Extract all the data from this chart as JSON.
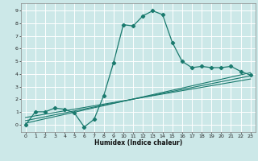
{
  "title": "",
  "xlabel": "Humidex (Indice chaleur)",
  "ylabel": "",
  "bg_color": "#cce8e8",
  "grid_color": "#ffffff",
  "line_color": "#1a7a6e",
  "xlim": [
    -0.5,
    23.5
  ],
  "ylim": [
    -0.6,
    9.6
  ],
  "xticks": [
    0,
    1,
    2,
    3,
    4,
    5,
    6,
    7,
    8,
    9,
    10,
    11,
    12,
    13,
    14,
    15,
    16,
    17,
    18,
    19,
    20,
    21,
    22,
    23
  ],
  "yticks": [
    0,
    1,
    2,
    3,
    4,
    5,
    6,
    7,
    8,
    9
  ],
  "series": [
    {
      "x": [
        0,
        1,
        2,
        3,
        4,
        5,
        6,
        7,
        8,
        9,
        10,
        11,
        12,
        13,
        14,
        15,
        16,
        17,
        18,
        19,
        20,
        21,
        22,
        23
      ],
      "y": [
        -0.05,
        1.0,
        1.0,
        1.3,
        1.2,
        0.9,
        -0.2,
        0.4,
        2.3,
        4.9,
        7.9,
        7.8,
        8.6,
        9.0,
        8.7,
        6.5,
        5.0,
        4.5,
        4.6,
        4.5,
        4.5,
        4.6,
        4.2,
        3.9
      ],
      "marker": "D",
      "markersize": 2.2,
      "linewidth": 0.9
    },
    {
      "x": [
        0,
        23
      ],
      "y": [
        0.1,
        4.1
      ],
      "marker": null,
      "markersize": 0,
      "linewidth": 0.8
    },
    {
      "x": [
        0,
        23
      ],
      "y": [
        0.3,
        3.85
      ],
      "marker": null,
      "markersize": 0,
      "linewidth": 0.8
    },
    {
      "x": [
        0,
        23
      ],
      "y": [
        0.55,
        3.6
      ],
      "marker": null,
      "markersize": 0,
      "linewidth": 0.8
    }
  ]
}
